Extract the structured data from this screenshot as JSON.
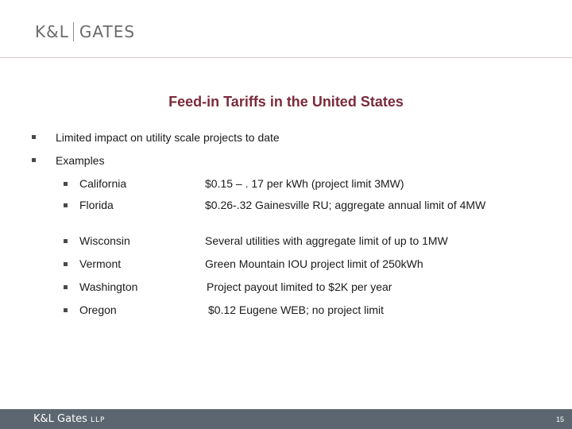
{
  "header": {
    "logo_left": "K&L",
    "logo_right": "GATES"
  },
  "slide": {
    "title": "Feed-in Tariffs in the United States",
    "bullets": [
      "Limited impact on utility scale projects to date",
      "Examples"
    ],
    "examples": [
      {
        "state": "California",
        "detail": "$0.15 – . 17 per kWh (project limit 3MW)"
      },
      {
        "state": "Florida",
        "detail": "$0.26-.32  Gainesville RU; aggregate annual limit of 4MW"
      },
      {
        "state": "Wisconsin",
        "detail": "Several utilities with aggregate limit of up to 1MW"
      },
      {
        "state": "Vermont",
        "detail": "Green Mountain IOU project limit of 250kWh"
      },
      {
        "state": "Washington",
        "detail": "Project payout limited to $2K per year"
      },
      {
        "state": "Oregon",
        "detail": "$0.12 Eugene WEB; no project limit"
      }
    ]
  },
  "footer": {
    "brand": "K&L Gates",
    "suffix": "LLP",
    "page_number": "15"
  },
  "colors": {
    "title": "#7b2b3b",
    "footer_bar": "#5b6670",
    "logo": "#6b6b6b"
  }
}
